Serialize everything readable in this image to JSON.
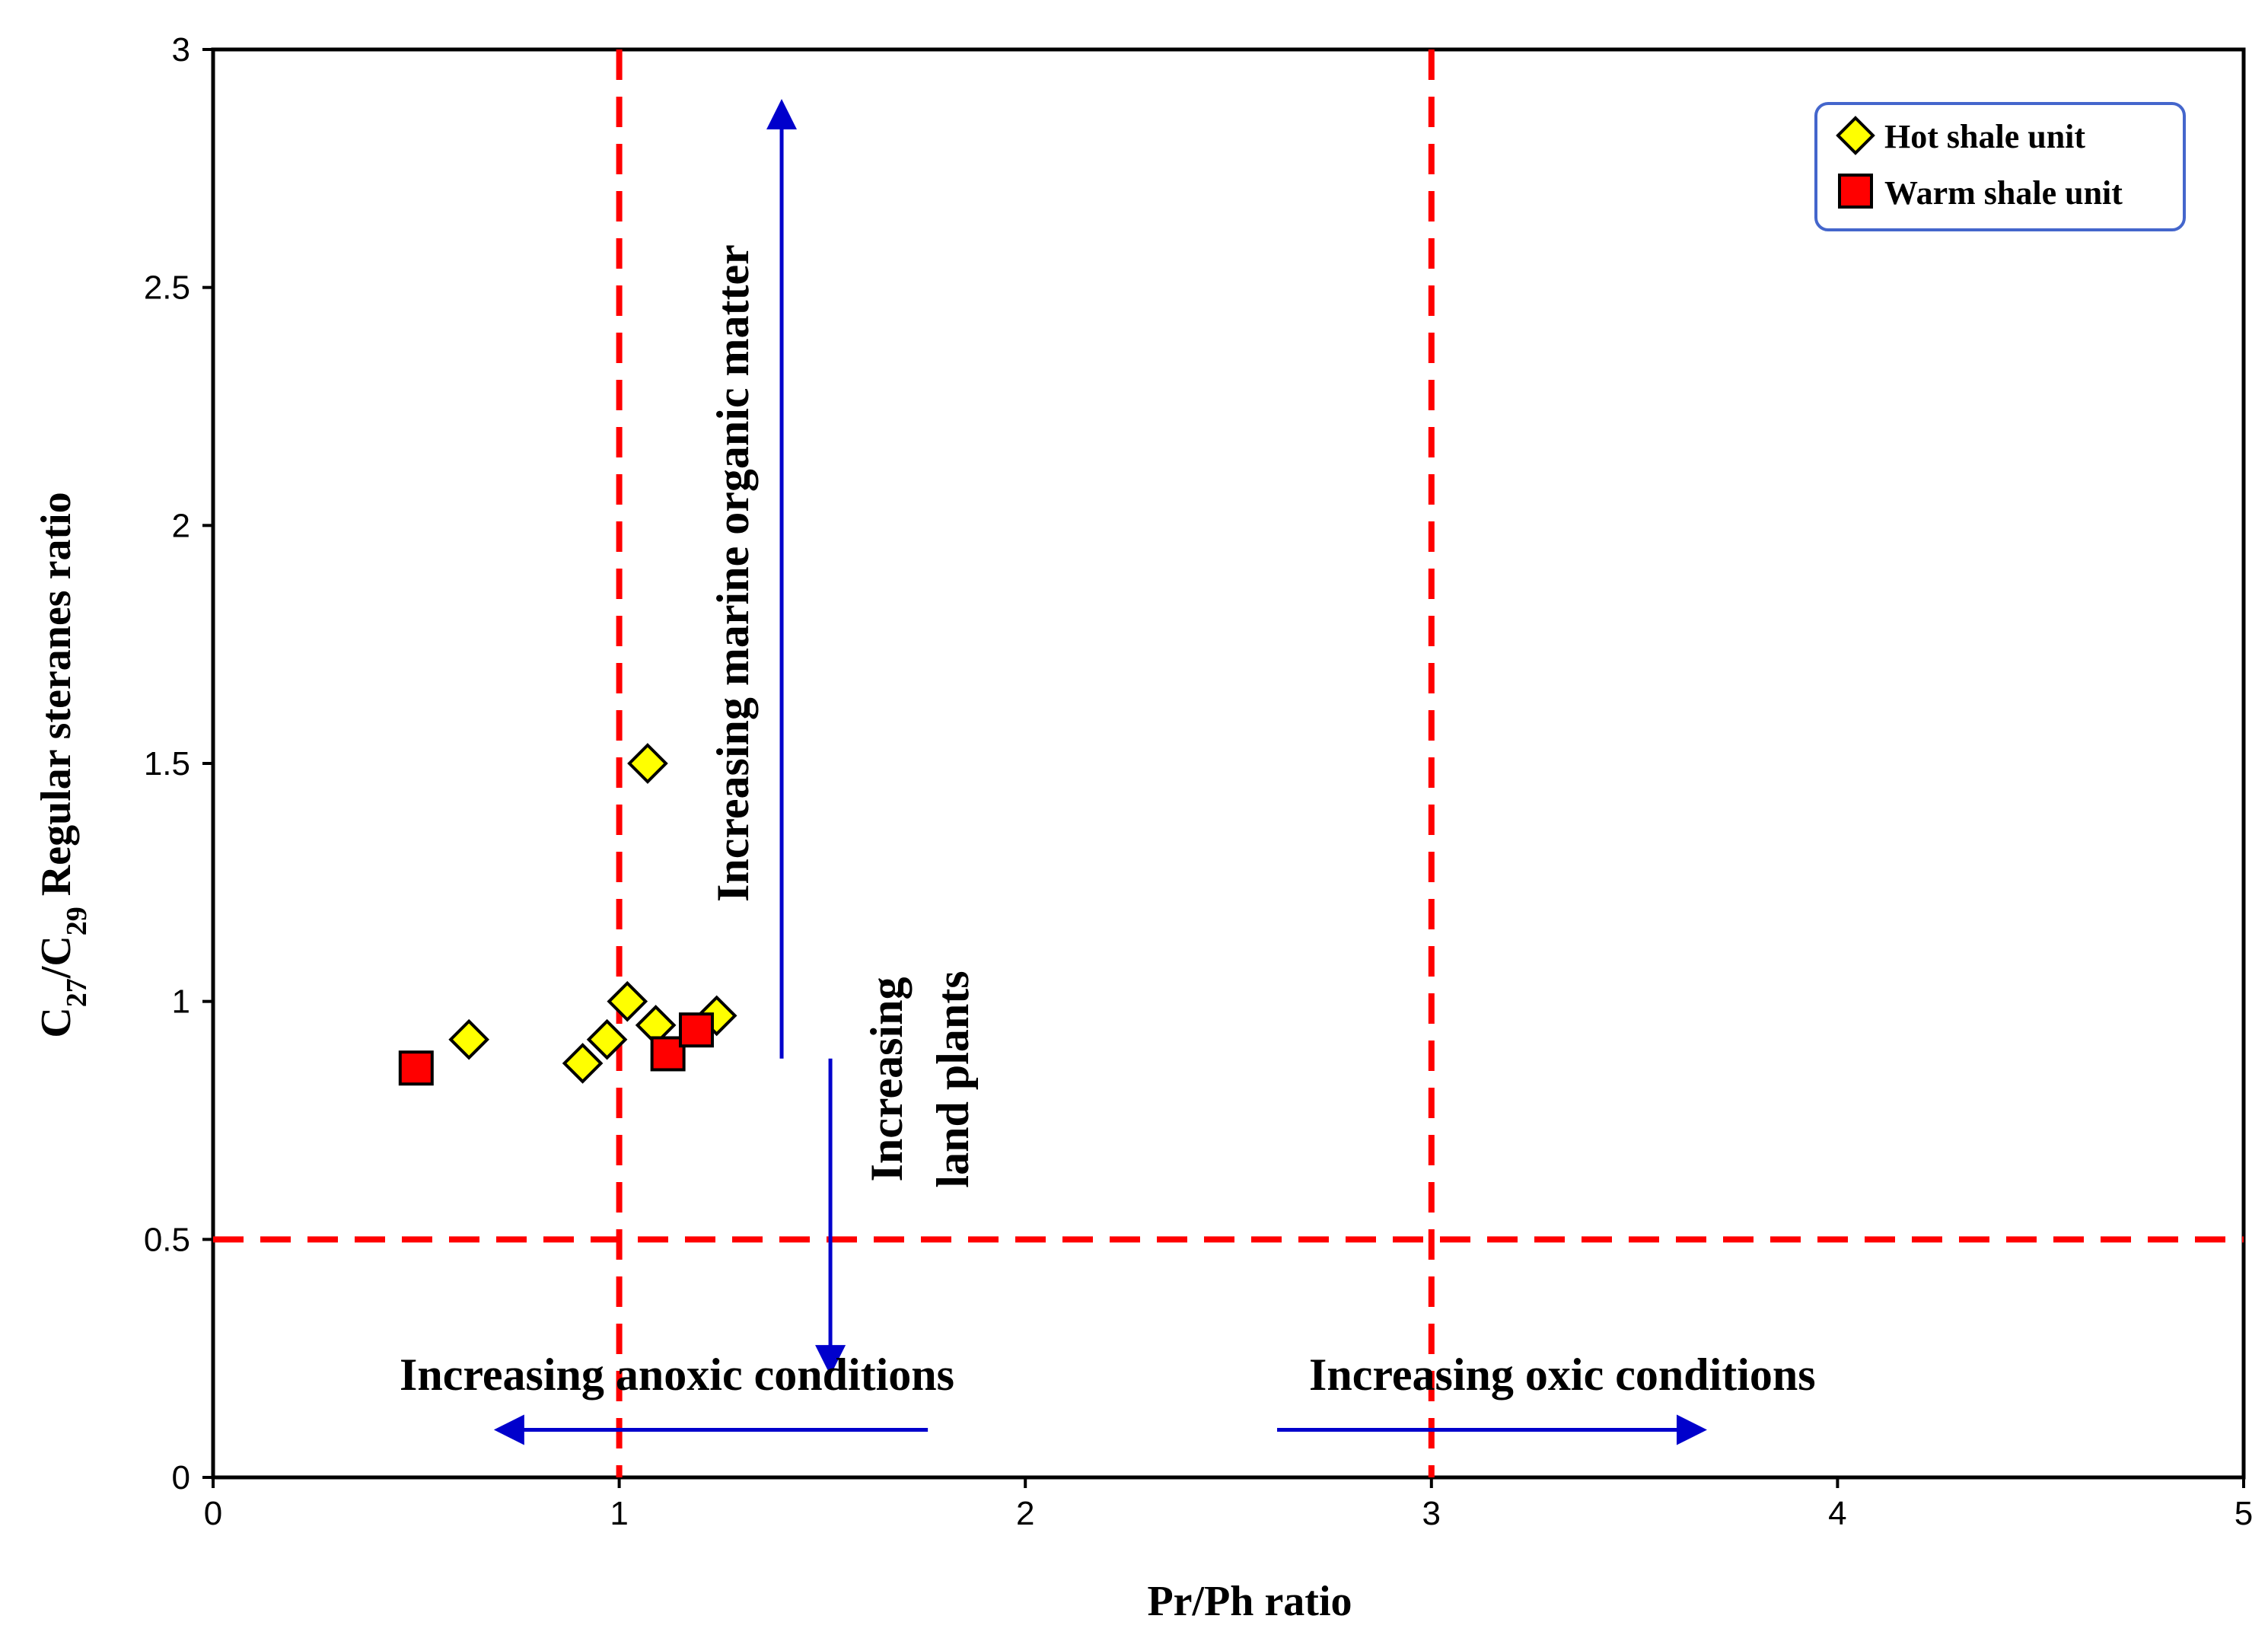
{
  "chart_data": {
    "type": "scatter",
    "title": "",
    "xlabel": "Pr/Ph ratio",
    "ylabel": {
      "c1_prefix": "C",
      "c1_sub": "27",
      "slash": "/",
      "c2_prefix": "C",
      "c2_sub": "29",
      "suffix": " Regular steranes ratio"
    },
    "xlim": [
      0,
      5
    ],
    "ylim": [
      0,
      3
    ],
    "xticks": [
      0,
      1,
      2,
      3,
      4,
      5
    ],
    "yticks": [
      0,
      0.5,
      1,
      1.5,
      2,
      2.5,
      3
    ],
    "xtick_labels": [
      "0",
      "1",
      "2",
      "3",
      "4",
      "5"
    ],
    "ytick_labels": [
      "0",
      "0.5",
      "1",
      "1.5",
      "2",
      "2.5",
      "3"
    ],
    "grid": false,
    "legend_position": "top-right",
    "series": [
      {
        "name": "Hot shale unit",
        "marker": "diamond",
        "color": "#ffff00",
        "points": [
          {
            "x": 0.63,
            "y": 0.92
          },
          {
            "x": 0.91,
            "y": 0.87
          },
          {
            "x": 0.97,
            "y": 0.92
          },
          {
            "x": 1.02,
            "y": 1.0
          },
          {
            "x": 1.07,
            "y": 1.5
          },
          {
            "x": 1.09,
            "y": 0.95
          },
          {
            "x": 1.24,
            "y": 0.97
          }
        ]
      },
      {
        "name": "Warm shale unit",
        "marker": "square",
        "color": "#ff0000",
        "points": [
          {
            "x": 0.5,
            "y": 0.86
          },
          {
            "x": 1.12,
            "y": 0.89
          },
          {
            "x": 1.19,
            "y": 0.94
          }
        ]
      }
    ],
    "reference_lines": [
      {
        "orientation": "vertical",
        "value": 1,
        "color": "#ff0000",
        "style": "dashed"
      },
      {
        "orientation": "vertical",
        "value": 3,
        "color": "#ff0000",
        "style": "dashed"
      },
      {
        "orientation": "horizontal",
        "value": 0.5,
        "color": "#ff0000",
        "style": "dashed"
      }
    ],
    "annotations": [
      {
        "name": "annotation-marine-organic-matter",
        "text": "Increasing  marine organic matter",
        "orientation": "vertical"
      },
      {
        "name": "annotation-land-plants-line1",
        "text": "Increasing",
        "orientation": "vertical"
      },
      {
        "name": "annotation-land-plants-line2",
        "text": "land plants",
        "orientation": "vertical"
      },
      {
        "name": "annotation-anoxic",
        "text": "Increasing anoxic conditions",
        "orientation": "horizontal"
      },
      {
        "name": "annotation-oxic",
        "text": "Increasing oxic conditions",
        "orientation": "horizontal"
      }
    ],
    "arrows": [
      {
        "name": "arrow-marine-up",
        "direction": "up",
        "from": {
          "x": 1.4,
          "y": 0.88
        },
        "to": {
          "x": 1.4,
          "y": 2.88
        }
      },
      {
        "name": "arrow-land-down",
        "direction": "down",
        "from": {
          "x": 1.52,
          "y": 0.88
        },
        "to": {
          "x": 1.52,
          "y": 0.23
        }
      },
      {
        "name": "arrow-anoxic-left",
        "direction": "left",
        "from": {
          "x": 1.76,
          "y": 0.1
        },
        "to": {
          "x": 0.71,
          "y": 0.1
        }
      },
      {
        "name": "arrow-oxic-right",
        "direction": "right",
        "from": {
          "x": 2.62,
          "y": 0.1
        },
        "to": {
          "x": 3.66,
          "y": 0.1
        }
      }
    ],
    "colors": {
      "reference_line": "#ff0000",
      "arrow": "#0000cc",
      "legend_border": "#4466cc",
      "axis": "#000000"
    }
  }
}
